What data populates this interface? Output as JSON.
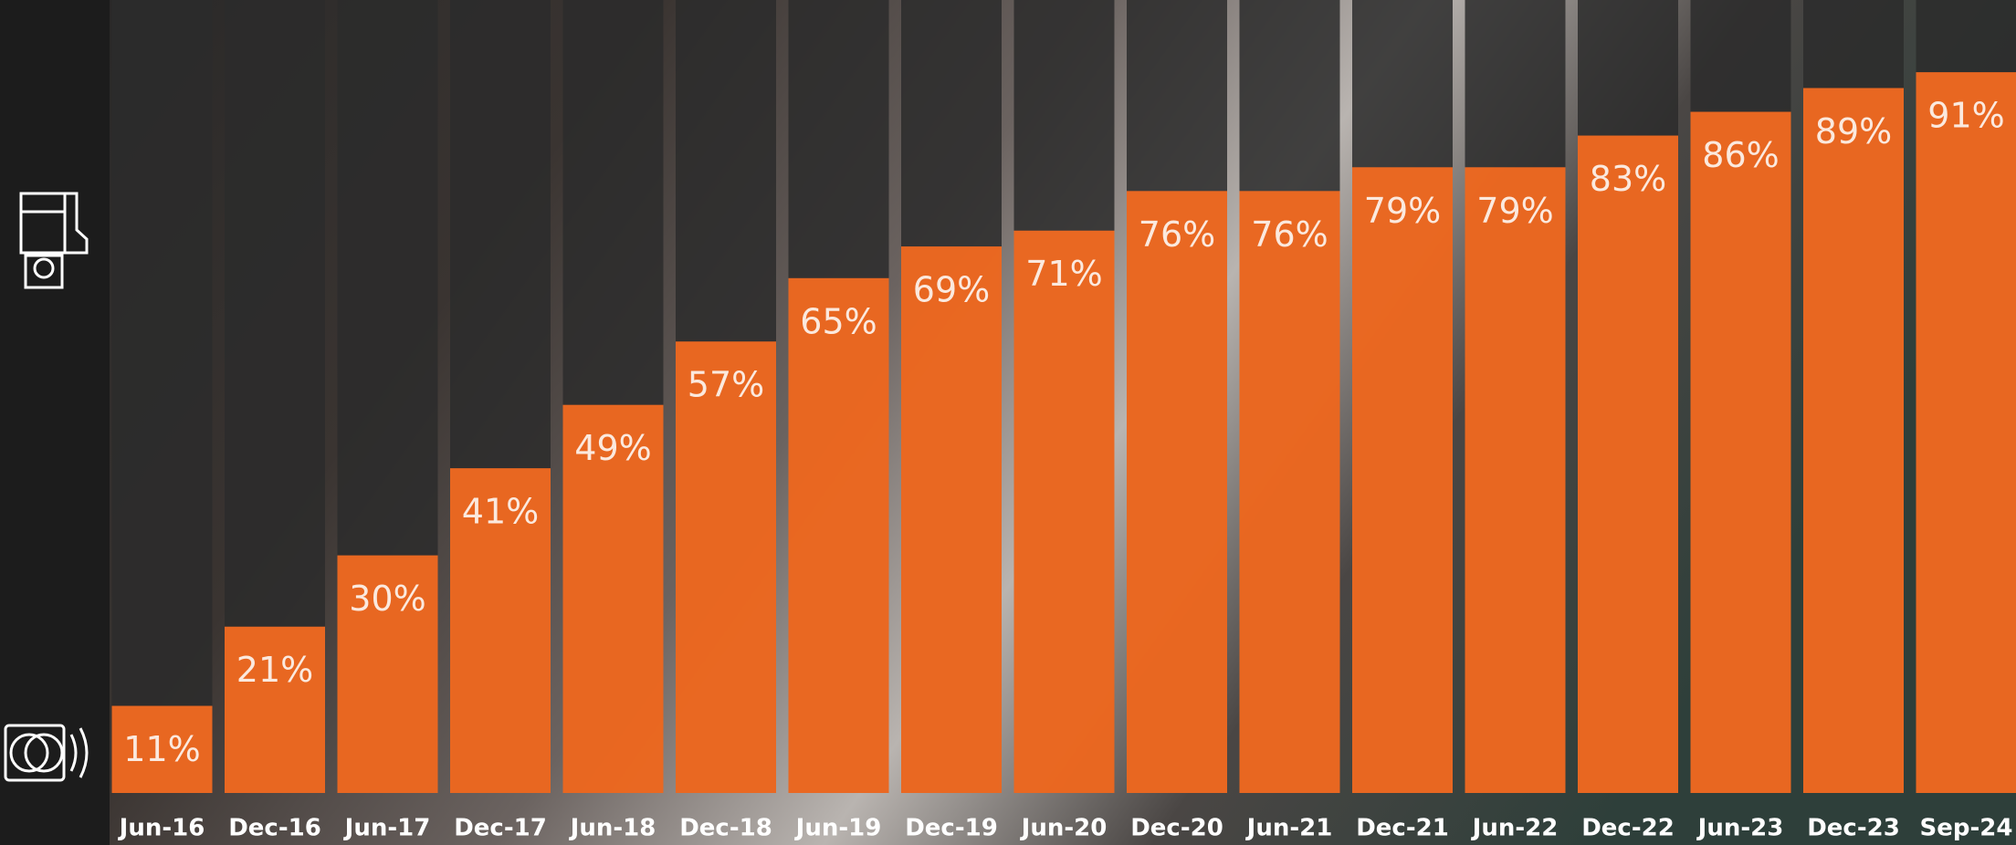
{
  "chart_data": {
    "type": "bar",
    "categories": [
      "Jun-16",
      "Dec-16",
      "Jun-17",
      "Dec-17",
      "Jun-18",
      "Dec-18",
      "Jun-19",
      "Dec-19",
      "Jun-20",
      "Dec-20",
      "Jun-21",
      "Dec-21",
      "Jun-22",
      "Dec-22",
      "Jun-23",
      "Dec-23",
      "Sep-24"
    ],
    "values": [
      11,
      21,
      30,
      41,
      49,
      57,
      65,
      69,
      71,
      76,
      76,
      79,
      79,
      83,
      86,
      89,
      91
    ],
    "value_labels": [
      "11%",
      "21%",
      "30%",
      "41%",
      "49%",
      "57%",
      "65%",
      "69%",
      "71%",
      "76%",
      "76%",
      "79%",
      "79%",
      "83%",
      "86%",
      "89%",
      "91%"
    ],
    "color": "#f26a21",
    "ylim": [
      0,
      100
    ]
  }
}
